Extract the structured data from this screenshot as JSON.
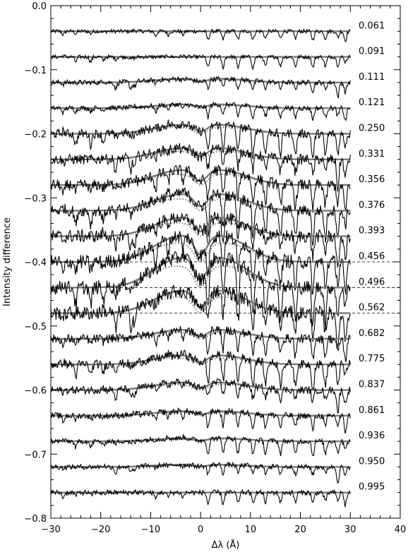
{
  "chart_data": {
    "type": "line",
    "xlabel": "Δλ (Å)",
    "ylabel": "Intensity difference",
    "xlim": [
      -30,
      40
    ],
    "ylim": [
      -0.8,
      0.0
    ],
    "x_ticks": [
      -30,
      -20,
      -10,
      0,
      10,
      20,
      30,
      40
    ],
    "x_tick_labels": [
      "−30",
      "−20",
      "−10",
      "0",
      "10",
      "20",
      "30",
      "40"
    ],
    "y_ticks": [
      0.0,
      -0.1,
      -0.2,
      -0.3,
      -0.4,
      -0.5,
      -0.6,
      -0.7,
      -0.8
    ],
    "y_tick_labels": [
      "0.0",
      "−0.1",
      "−0.2",
      "−0.3",
      "−0.4",
      "−0.5",
      "−0.6",
      "−0.7",
      "−0.8"
    ],
    "data_x_range": [
      -30,
      30
    ],
    "series": [
      {
        "label": "0.061",
        "offset": -0.04,
        "amp": 0.0,
        "noise": 0.003
      },
      {
        "label": "0.091",
        "offset": -0.08,
        "amp": 0.0,
        "noise": 0.003
      },
      {
        "label": "0.111",
        "offset": -0.12,
        "amp": 0.005,
        "noise": 0.004
      },
      {
        "label": "0.121",
        "offset": -0.16,
        "amp": 0.005,
        "noise": 0.004
      },
      {
        "label": "0.250",
        "offset": -0.2,
        "amp": 0.012,
        "noise": 0.007
      },
      {
        "label": "0.331",
        "offset": -0.24,
        "amp": 0.015,
        "noise": 0.008
      },
      {
        "label": "0.356",
        "offset": -0.28,
        "amp": 0.02,
        "noise": 0.009
      },
      {
        "label": "0.376",
        "offset": -0.32,
        "amp": 0.022,
        "noise": 0.009
      },
      {
        "label": "0.393",
        "offset": -0.36,
        "amp": 0.025,
        "noise": 0.01
      },
      {
        "label": "0.456",
        "offset": -0.4,
        "amp": 0.035,
        "noise": 0.011
      },
      {
        "label": "0.496",
        "offset": -0.44,
        "amp": 0.04,
        "noise": 0.011
      },
      {
        "label": "0.562",
        "offset": -0.48,
        "amp": 0.03,
        "noise": 0.011
      },
      {
        "label": "0.682",
        "offset": -0.52,
        "amp": 0.012,
        "noise": 0.007
      },
      {
        "label": "0.775",
        "offset": -0.56,
        "amp": 0.012,
        "noise": 0.007
      },
      {
        "label": "0.837",
        "offset": -0.6,
        "amp": 0.01,
        "noise": 0.006
      },
      {
        "label": "0.861",
        "offset": -0.64,
        "amp": 0.006,
        "noise": 0.005
      },
      {
        "label": "0.936",
        "offset": -0.68,
        "amp": 0.004,
        "noise": 0.004
      },
      {
        "label": "0.950",
        "offset": -0.72,
        "amp": 0.003,
        "noise": 0.004
      },
      {
        "label": "0.995",
        "offset": -0.76,
        "amp": 0.0,
        "noise": 0.004
      }
    ],
    "colors": {
      "observed": "#000000",
      "model_solid": "#7a7a7a",
      "model_dotted": "#7a7a7a",
      "baseline": "#000000"
    }
  }
}
